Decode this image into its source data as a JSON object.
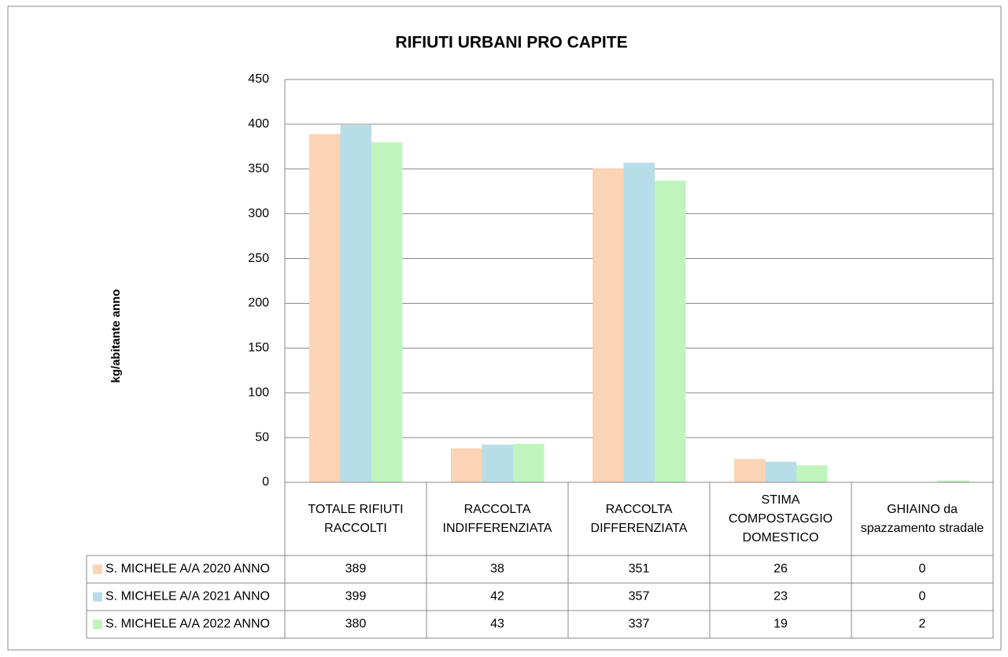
{
  "chart_data": {
    "type": "bar",
    "title": "RIFIUTI URBANI PRO CAPITE",
    "y_label": "kg/abitante anno",
    "categories": [
      "TOTALE RIFIUTI RACCOLTI",
      "RACCOLTA INDIFFERENZIATA",
      "RACCOLTA DIFFERENZIATA",
      "STIMA COMPOSTAGGIO DOMESTICO",
      "GHIAINO da spazzamento stradale"
    ],
    "series": [
      {
        "name": "S. MICHELE A/A 2020 ANNO",
        "color": "#fbd3b5",
        "values": [
          389,
          38,
          351,
          26,
          0
        ]
      },
      {
        "name": "S. MICHELE A/A 2021 ANNO",
        "color": "#b7dde8",
        "values": [
          399,
          42,
          357,
          23,
          0
        ]
      },
      {
        "name": "S. MICHELE A/A 2022 ANNO",
        "color": "#bff5bd",
        "values": [
          380,
          43,
          337,
          19,
          2
        ]
      }
    ],
    "ylim": [
      0,
      450
    ],
    "yticks": [
      0,
      50,
      100,
      150,
      200,
      250,
      300,
      350,
      400,
      450
    ],
    "grid": true,
    "data_table": true
  }
}
